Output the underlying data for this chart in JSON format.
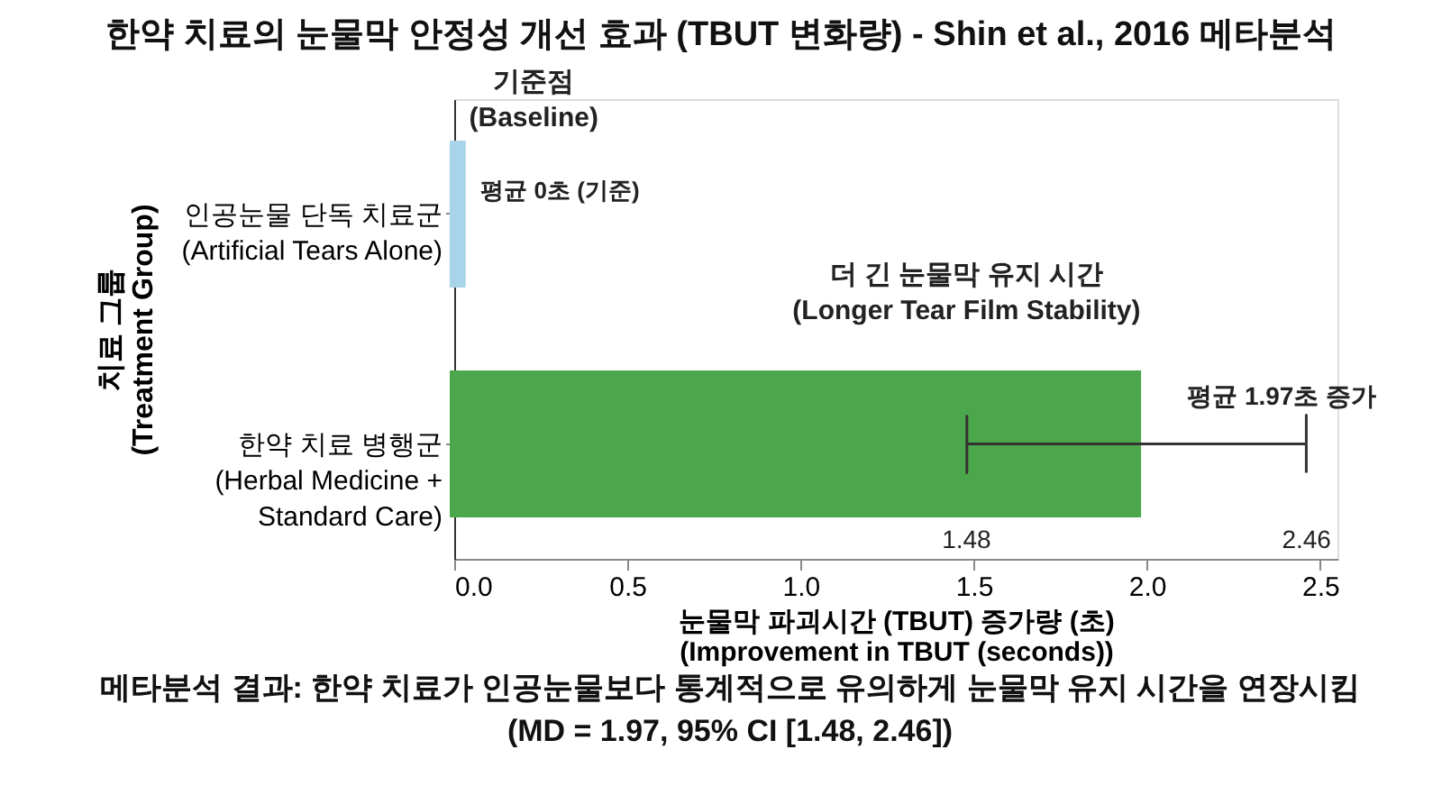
{
  "chart_data": {
    "type": "bar",
    "orientation": "horizontal",
    "title": "한약 치료의 눈물막 안정성 개선 효과 (TBUT 변화량) - Shin et al., 2016 메타분석",
    "xlabel": "눈물막 파괴시간 (TBUT) 증가량 (초)\n(Improvement in TBUT (seconds))",
    "ylabel": "치료 그룹\n(Treatment Group)",
    "categories": [
      "인공눈물 단독 치료군\n(Artificial Tears Alone)",
      "한약 치료 병행군\n(Herbal Medicine +\nStandard Care)"
    ],
    "values": [
      0.02,
      1.97
    ],
    "colors": [
      "#a8d4ea",
      "#4ca64c"
    ],
    "errors": [
      null,
      [
        1.48,
        2.46
      ]
    ],
    "value_labels": [
      null,
      "평균 1.97초 증가"
    ],
    "xlim": [
      0,
      2.55
    ],
    "xticks": [
      {
        "value": 0,
        "label": "0.0"
      },
      {
        "value": 0.5,
        "label": "0.5"
      },
      {
        "value": 1,
        "label": "1.0"
      },
      {
        "value": 1.5,
        "label": "1.5"
      },
      {
        "value": 2,
        "label": "2.0"
      },
      {
        "value": 2.5,
        "label": "2.5"
      }
    ],
    "annotations": [
      "기준점\n(Baseline)",
      "평균 0초 (기준)",
      "더 긴 눈물막 유지 시간\n(Longer Tear Film Stability)",
      "1.48",
      "2.46",
      "메타분석 결과: 한약 치료가 인공눈물보다 통계적으로 유의하게 눈물막 유지 시간을 연장시킴\n(MD = 1.97, 95% CI [1.48, 2.46])"
    ],
    "grid": false
  }
}
